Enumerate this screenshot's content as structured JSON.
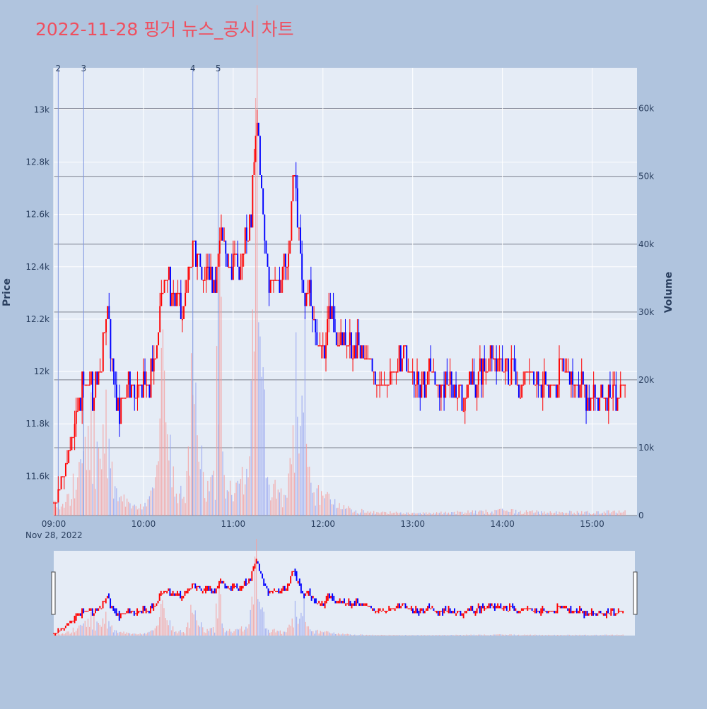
{
  "chart_data": {
    "type": "candlestick",
    "title": "2022-11-28 핑거 뉴스_공시 차트",
    "xlabel": "",
    "ylabel": "Price",
    "y2label": "Volume",
    "date_label": "Nov 28, 2022",
    "x_range": [
      "09:00",
      "15:30"
    ],
    "x_ticks": [
      "09:00",
      "10:00",
      "11:00",
      "12:00",
      "13:00",
      "14:00",
      "15:00"
    ],
    "price_range": [
      11450,
      13160
    ],
    "price_ticks": [
      {
        "value": 11600,
        "label": "11.6k"
      },
      {
        "value": 11800,
        "label": "11.8k"
      },
      {
        "value": 12000,
        "label": "12k"
      },
      {
        "value": 12200,
        "label": "12.2k"
      },
      {
        "value": 12400,
        "label": "12.4k"
      },
      {
        "value": 12600,
        "label": "12.6k"
      },
      {
        "value": 12800,
        "label": "12.8k"
      },
      {
        "value": 13000,
        "label": "13k"
      }
    ],
    "volume_range": [
      0,
      66000
    ],
    "volume_ticks": [
      {
        "value": 0,
        "label": "0"
      },
      {
        "value": 10000,
        "label": "10k"
      },
      {
        "value": 20000,
        "label": "20k"
      },
      {
        "value": 30000,
        "label": "30k"
      },
      {
        "value": 40000,
        "label": "40k"
      },
      {
        "value": 50000,
        "label": "50k"
      },
      {
        "value": 60000,
        "label": "60k"
      }
    ],
    "events": [
      {
        "label": "2",
        "time": "09:03"
      },
      {
        "label": "3",
        "time": "09:20"
      },
      {
        "label": "4",
        "time": "10:33"
      },
      {
        "label": "5",
        "time": "10:50"
      }
    ],
    "colors": {
      "up": "#ff0000",
      "down": "#0000ff",
      "background": "#b0c4de",
      "plot": "#e5ecf6",
      "title": "#ef4f5f"
    },
    "range_slider": true,
    "grid": true,
    "keypoints": [
      [
        "09:00",
        11500
      ],
      [
        "09:02",
        11520
      ],
      [
        "09:04",
        11580
      ],
      [
        "09:06",
        11600
      ],
      [
        "09:08",
        11620
      ],
      [
        "09:10",
        11700
      ],
      [
        "09:12",
        11740
      ],
      [
        "09:14",
        11800
      ],
      [
        "09:16",
        11850
      ],
      [
        "09:18",
        11900
      ],
      [
        "09:20",
        11960
      ],
      [
        "09:22",
        11980
      ],
      [
        "09:24",
        11950
      ],
      [
        "09:26",
        11920
      ],
      [
        "09:28",
        11980
      ],
      [
        "09:30",
        12000
      ],
      [
        "09:32",
        12050
      ],
      [
        "09:34",
        12150
      ],
      [
        "09:36",
        12200
      ],
      [
        "09:38",
        12050
      ],
      [
        "09:40",
        12000
      ],
      [
        "09:42",
        11900
      ],
      [
        "09:44",
        11870
      ],
      [
        "09:46",
        11900
      ],
      [
        "09:50",
        11930
      ],
      [
        "09:55",
        11950
      ],
      [
        "10:00",
        11930
      ],
      [
        "10:03",
        11950
      ],
      [
        "10:06",
        12000
      ],
      [
        "10:09",
        12100
      ],
      [
        "10:12",
        12250
      ],
      [
        "10:15",
        12380
      ],
      [
        "10:18",
        12300
      ],
      [
        "10:20",
        12280
      ],
      [
        "10:23",
        12250
      ],
      [
        "10:26",
        12200
      ],
      [
        "10:29",
        12320
      ],
      [
        "10:32",
        12430
      ],
      [
        "10:34",
        12500
      ],
      [
        "10:37",
        12400
      ],
      [
        "10:40",
        12350
      ],
      [
        "10:43",
        12420
      ],
      [
        "10:46",
        12300
      ],
      [
        "10:49",
        12380
      ],
      [
        "10:52",
        12560
      ],
      [
        "10:55",
        12450
      ],
      [
        "10:58",
        12400
      ],
      [
        "11:01",
        12460
      ],
      [
        "11:04",
        12420
      ],
      [
        "11:07",
        12470
      ],
      [
        "11:10",
        12500
      ],
      [
        "11:12",
        12600
      ],
      [
        "11:14",
        12800
      ],
      [
        "11:16",
        13000
      ],
      [
        "11:18",
        12750
      ],
      [
        "11:20",
        12580
      ],
      [
        "11:22",
        12450
      ],
      [
        "11:24",
        12320
      ],
      [
        "11:27",
        12350
      ],
      [
        "11:30",
        12330
      ],
      [
        "11:33",
        12380
      ],
      [
        "11:36",
        12420
      ],
      [
        "11:38",
        12500
      ],
      [
        "11:40",
        12750
      ],
      [
        "11:42",
        12680
      ],
      [
        "11:44",
        12500
      ],
      [
        "11:46",
        12350
      ],
      [
        "11:48",
        12280
      ],
      [
        "11:51",
        12300
      ],
      [
        "11:54",
        12200
      ],
      [
        "11:57",
        12100
      ],
      [
        "12:00",
        12030
      ],
      [
        "12:03",
        12150
      ],
      [
        "12:06",
        12230
      ],
      [
        "12:09",
        12130
      ],
      [
        "12:12",
        12080
      ],
      [
        "12:16",
        12100
      ],
      [
        "12:20",
        12070
      ],
      [
        "12:25",
        12080
      ],
      [
        "12:30",
        12060
      ],
      [
        "12:36",
        11960
      ],
      [
        "12:42",
        11940
      ],
      [
        "12:48",
        12010
      ],
      [
        "12:54",
        12040
      ],
      [
        "13:00",
        11970
      ],
      [
        "13:06",
        11960
      ],
      [
        "13:12",
        11990
      ],
      [
        "13:18",
        11950
      ],
      [
        "13:24",
        11960
      ],
      [
        "13:30",
        11900
      ],
      [
        "13:36",
        11920
      ],
      [
        "13:42",
        11950
      ],
      [
        "13:48",
        12000
      ],
      [
        "13:54",
        12050
      ],
      [
        "14:00",
        12020
      ],
      [
        "14:06",
        11990
      ],
      [
        "14:12",
        11960
      ],
      [
        "14:18",
        12000
      ],
      [
        "14:24",
        11940
      ],
      [
        "14:30",
        11950
      ],
      [
        "14:36",
        11970
      ],
      [
        "14:42",
        11990
      ],
      [
        "14:48",
        11940
      ],
      [
        "14:54",
        11930
      ],
      [
        "15:00",
        11910
      ],
      [
        "15:06",
        11900
      ],
      [
        "15:12",
        11920
      ],
      [
        "15:18",
        11880
      ],
      [
        "15:22",
        11920
      ]
    ],
    "volume_keypoints": [
      [
        "09:00",
        1500
      ],
      [
        "09:10",
        2500
      ],
      [
        "09:20",
        9000
      ],
      [
        "09:24",
        15000
      ],
      [
        "09:30",
        9000
      ],
      [
        "09:35",
        14000
      ],
      [
        "09:40",
        4000
      ],
      [
        "09:50",
        1500
      ],
      [
        "10:00",
        1500
      ],
      [
        "10:08",
        4000
      ],
      [
        "10:13",
        24000
      ],
      [
        "10:16",
        11000
      ],
      [
        "10:22",
        3000
      ],
      [
        "10:28",
        5000
      ],
      [
        "10:33",
        20000
      ],
      [
        "10:37",
        10000
      ],
      [
        "10:42",
        4000
      ],
      [
        "10:48",
        6000
      ],
      [
        "10:51",
        48000
      ],
      [
        "10:55",
        5000
      ],
      [
        "11:00",
        3000
      ],
      [
        "11:05",
        5000
      ],
      [
        "11:10",
        7000
      ],
      [
        "11:14",
        28000
      ],
      [
        "11:16",
        62000
      ],
      [
        "11:18",
        23000
      ],
      [
        "11:21",
        13000
      ],
      [
        "11:25",
        5000
      ],
      [
        "11:30",
        3000
      ],
      [
        "11:36",
        2500
      ],
      [
        "11:40",
        10000
      ],
      [
        "11:42",
        22000
      ],
      [
        "11:45",
        12000
      ],
      [
        "11:48",
        29000
      ],
      [
        "11:52",
        4000
      ],
      [
        "12:00",
        3000
      ],
      [
        "12:10",
        1500
      ],
      [
        "12:20",
        800
      ],
      [
        "12:30",
        600
      ],
      [
        "12:40",
        500
      ],
      [
        "13:00",
        300
      ],
      [
        "13:30",
        500
      ],
      [
        "14:00",
        700
      ],
      [
        "14:30",
        500
      ],
      [
        "15:00",
        500
      ],
      [
        "15:20",
        600
      ]
    ]
  }
}
